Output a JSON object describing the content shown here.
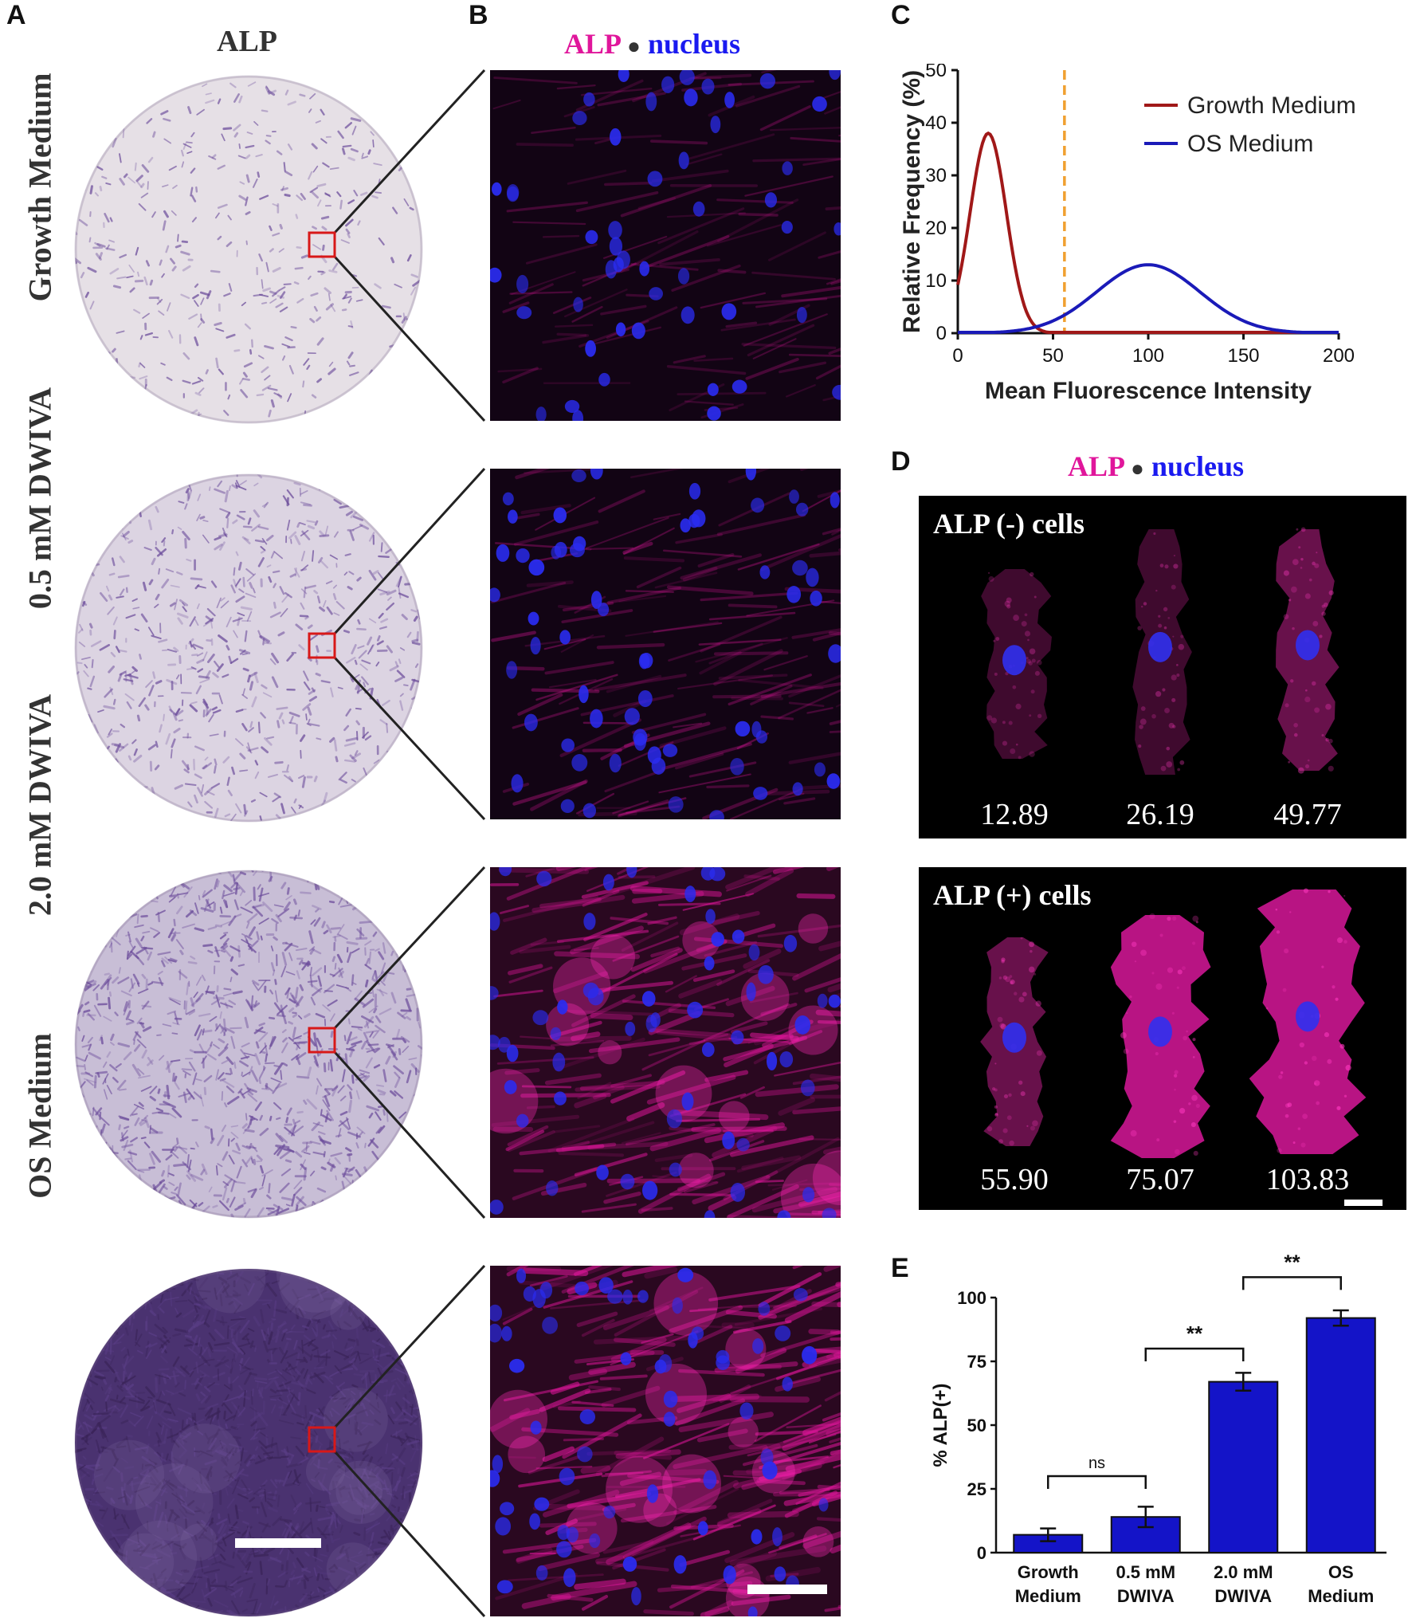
{
  "panels": {
    "a": {
      "letter": "A",
      "title": "ALP"
    },
    "b": {
      "letter": "B",
      "title_alp": "ALP",
      "title_sep": "●",
      "title_nucleus": "nucleus"
    },
    "c": {
      "letter": "C"
    },
    "d": {
      "letter": "D",
      "title_alp": "ALP",
      "title_sep": "●",
      "title_nucleus": "nucleus",
      "neg_title": "ALP (-) cells",
      "pos_title": "ALP (+) cells",
      "neg_values": [
        "12.89",
        "26.19",
        "49.77"
      ],
      "pos_values": [
        "55.90",
        "75.07",
        "103.83"
      ]
    },
    "e": {
      "letter": "E"
    }
  },
  "rows": [
    {
      "label": "Growth Medium",
      "dish_shade": 0.12,
      "alp_intensity": 0.3
    },
    {
      "label": "0.5 mM DWIVA",
      "dish_shade": 0.3,
      "alp_intensity": 0.45
    },
    {
      "label": "2.0 mM DWIVA",
      "dish_shade": 0.55,
      "alp_intensity": 0.85
    },
    {
      "label": "OS Medium",
      "dish_shade": 0.9,
      "alp_intensity": 0.95
    }
  ],
  "colors": {
    "alp": "#e0169b",
    "nucleus": "#1a1af0",
    "growth": "#a01818",
    "os": "#1a1ab8",
    "threshold": "#f0a030",
    "bar": "#1414c8",
    "dish": "#6a4a9a"
  },
  "chart_data": [
    {
      "type": "line",
      "xlabel": "Mean Fluorescence Intensity",
      "ylabel": "Relative Frequency (%)",
      "xlim": [
        0,
        200
      ],
      "ylim": [
        0,
        50
      ],
      "xticks": [
        0,
        50,
        100,
        150,
        200
      ],
      "yticks": [
        0,
        10,
        20,
        30,
        40,
        50
      ],
      "threshold_x": 56,
      "legend_position": "top-right",
      "series": [
        {
          "name": "Growth Medium",
          "peak_x": 16,
          "peak_y": 38,
          "sd": 9.5,
          "baseline_at_0": 12
        },
        {
          "name": "OS Medium",
          "peak_x": 100,
          "peak_y": 13,
          "sd": 27
        }
      ]
    },
    {
      "type": "bar",
      "ylabel": "% ALP(+)",
      "ylim": [
        0,
        100
      ],
      "yticks": [
        0,
        25,
        50,
        75,
        100
      ],
      "categories": [
        [
          "Growth",
          "Medium"
        ],
        [
          "0.5 mM",
          "DWIVA"
        ],
        [
          "2.0 mM",
          "DWIVA"
        ],
        [
          "OS",
          "Medium"
        ]
      ],
      "values": [
        7,
        14,
        67,
        92
      ],
      "errors": [
        2.5,
        4,
        3.5,
        3
      ],
      "significance": [
        {
          "from": 0,
          "to": 1,
          "label": "ns",
          "level": 30
        },
        {
          "from": 1,
          "to": 2,
          "label": "**",
          "level": 80
        },
        {
          "from": 2,
          "to": 3,
          "label": "**",
          "level": 108
        },
        {
          "from": 1,
          "to": 3,
          "label": "***",
          "level": 128
        }
      ]
    }
  ]
}
